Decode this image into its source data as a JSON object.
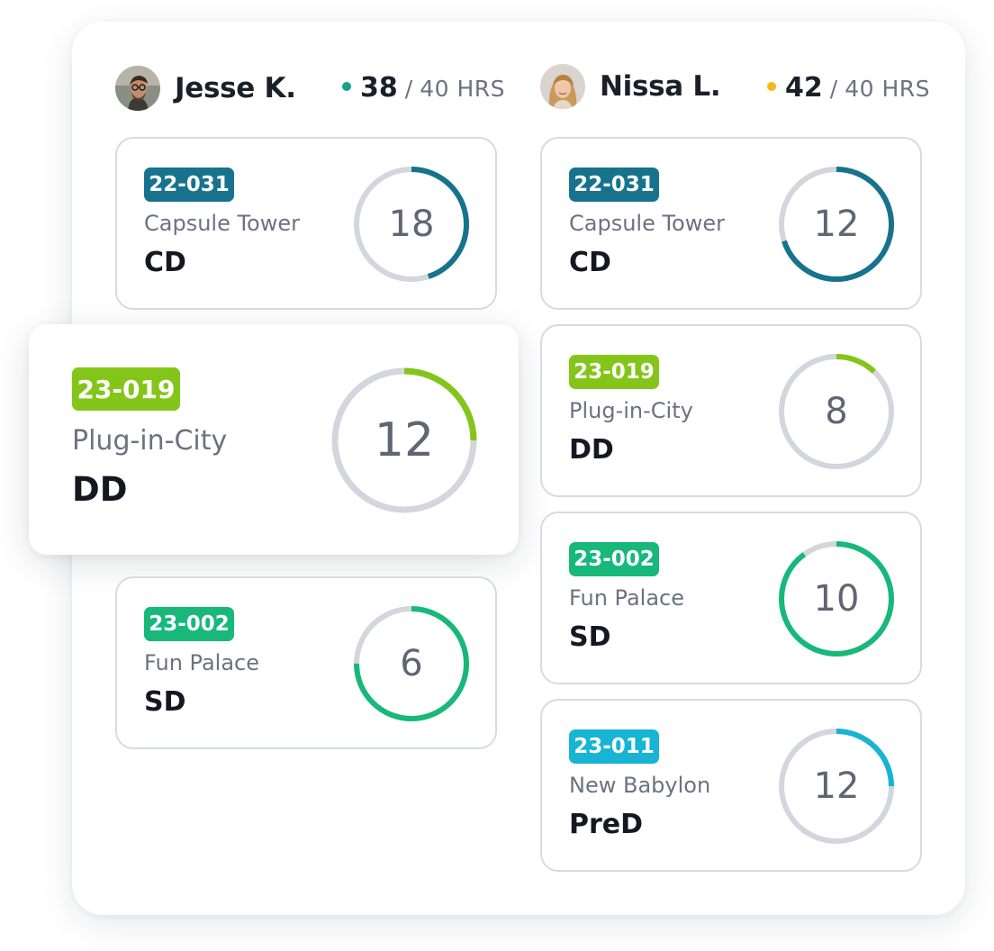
{
  "colors": {
    "teal_dark": "#17738d",
    "lime": "#84c51a",
    "green": "#17b87a",
    "cyan": "#17b4d4",
    "ring_track": "#d3d6dc",
    "dot_teal": "#17a08a",
    "dot_yellow": "#f5b91c"
  },
  "people": [
    {
      "name": "Jesse K.",
      "hours_logged": "38",
      "hours_separator": "/",
      "hours_total": "40 HRS",
      "dot_color": "#17a08a",
      "avatar_icon": "avatar-man-glasses",
      "cards": [
        {
          "code": "22-031",
          "project": "Capsule Tower",
          "phase": "CD",
          "hours": "18",
          "progress": 0.45,
          "color": "#17738d"
        },
        {
          "code": "23-019",
          "project": "Plug-in-City",
          "phase": "DD",
          "hours": "12",
          "progress": 0.25,
          "color": "#84c51a"
        },
        {
          "code": "23-002",
          "project": "Fun Palace",
          "phase": "SD",
          "hours": "6",
          "progress": 0.75,
          "color": "#17b87a"
        }
      ]
    },
    {
      "name": "Nissa L.",
      "hours_logged": "42",
      "hours_separator": "/",
      "hours_total": "40 HRS",
      "dot_color": "#f5b91c",
      "avatar_icon": "avatar-woman-blonde",
      "cards": [
        {
          "code": "22-031",
          "project": "Capsule Tower",
          "phase": "CD",
          "hours": "12",
          "progress": 0.7,
          "color": "#17738d"
        },
        {
          "code": "23-019",
          "project": "Plug-in-City",
          "phase": "DD",
          "hours": "8",
          "progress": 0.12,
          "color": "#84c51a"
        },
        {
          "code": "23-002",
          "project": "Fun Palace",
          "phase": "SD",
          "hours": "10",
          "progress": 0.9,
          "color": "#17b87a"
        },
        {
          "code": "23-011",
          "project": "New Babylon",
          "phase": "PreD",
          "hours": "12",
          "progress": 0.25,
          "color": "#17b4d4"
        }
      ]
    }
  ]
}
